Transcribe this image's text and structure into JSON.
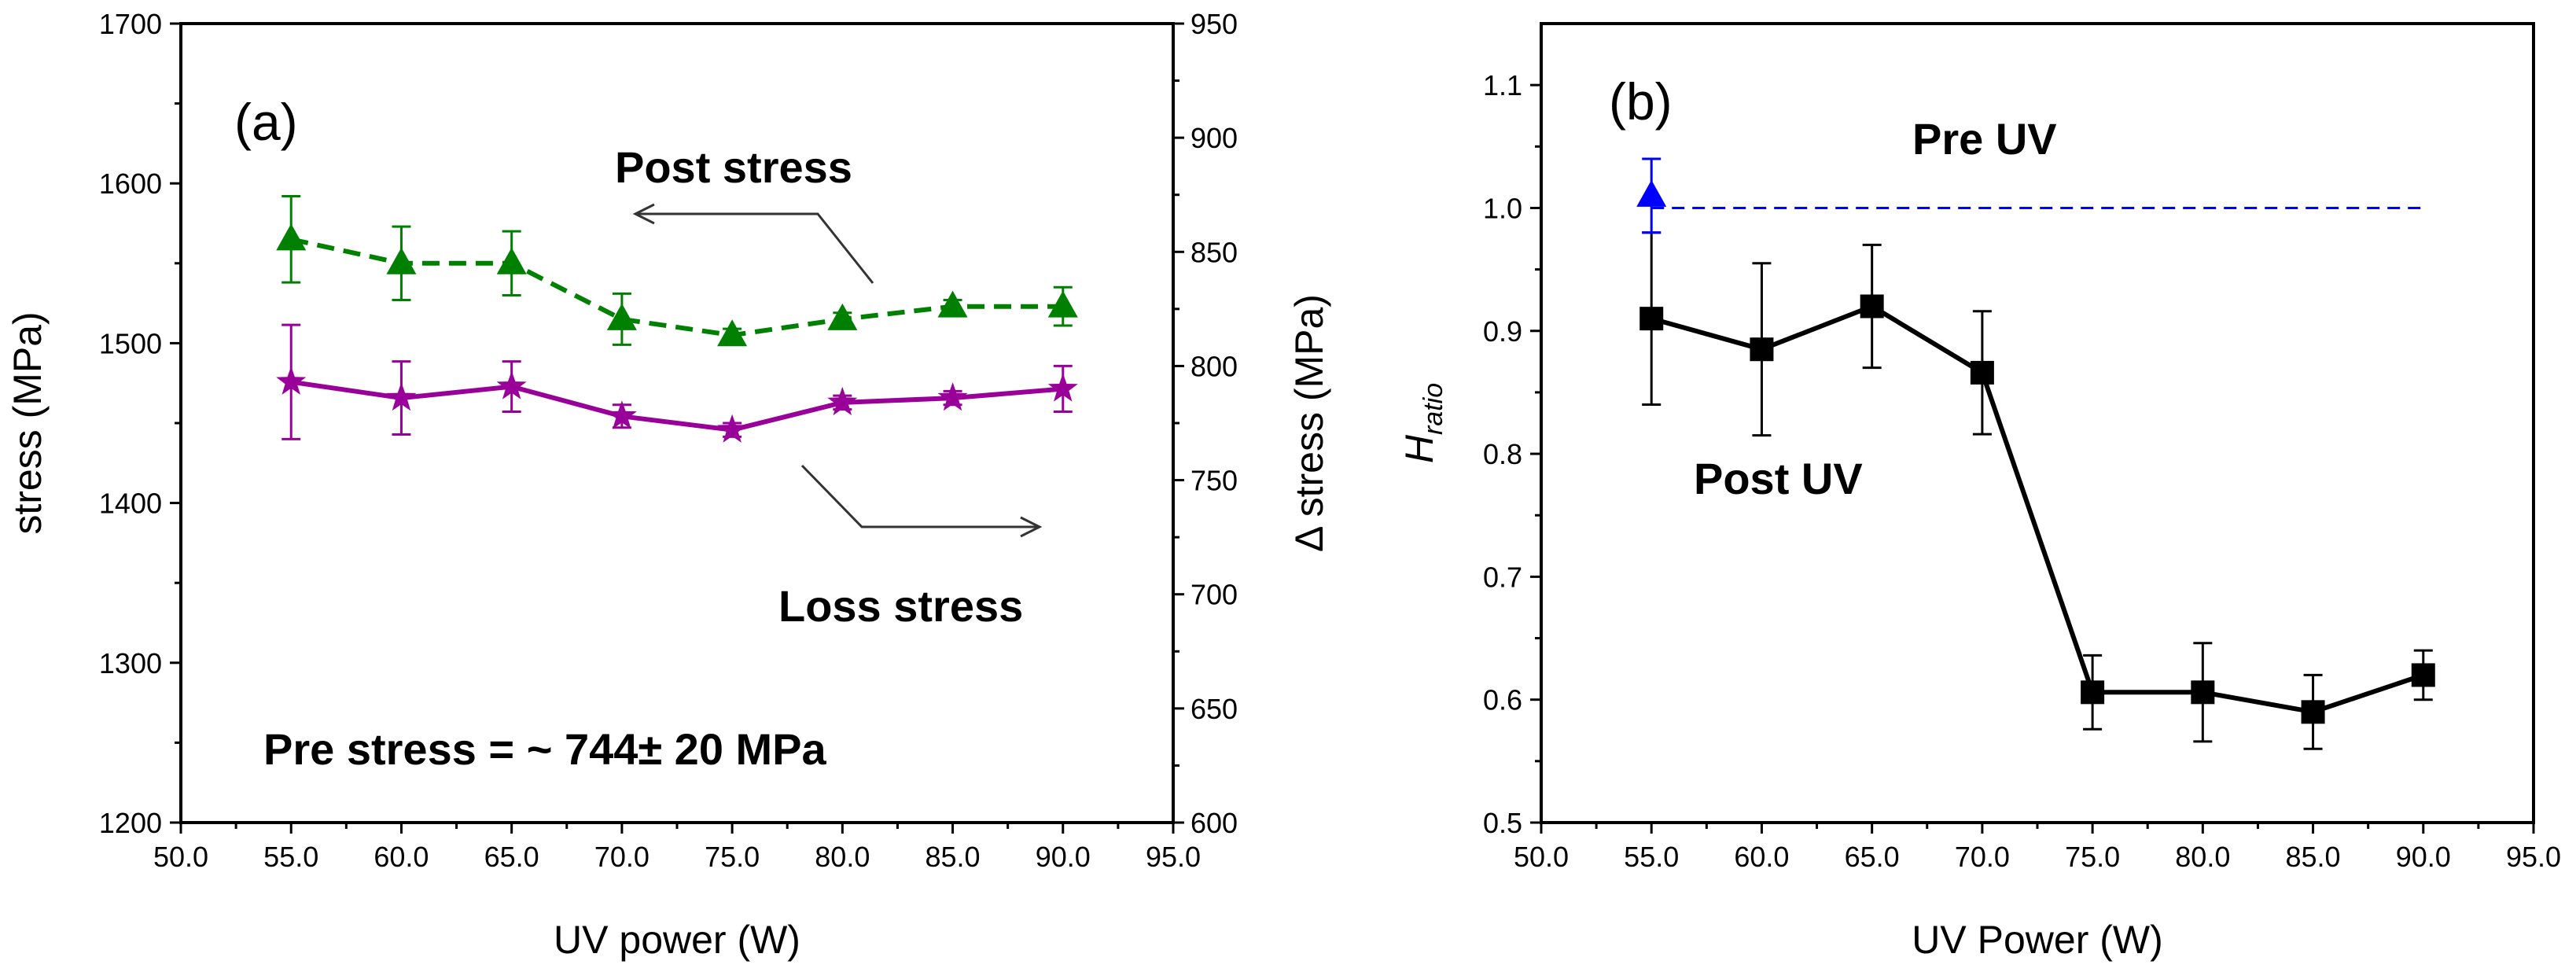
{
  "chart_data": [
    {
      "type": "line",
      "panel_label": "(a)",
      "xlabel": "UV power (W)",
      "ylabel": "stress (MPa)",
      "y2label": "Δ stress (MPa)",
      "xlim": [
        50,
        95
      ],
      "ylim": [
        1200,
        1700
      ],
      "y2lim": [
        600,
        950
      ],
      "x_ticks": [
        "50.0",
        "55.0",
        "60.0",
        "65.0",
        "70.0",
        "75.0",
        "80.0",
        "85.0",
        "90.0",
        "95.0"
      ],
      "y_ticks": [
        "1200",
        "1300",
        "1400",
        "1500",
        "1600",
        "1700"
      ],
      "y2_ticks": [
        "600",
        "650",
        "700",
        "750",
        "800",
        "850",
        "900",
        "950"
      ],
      "x": [
        55,
        60,
        65,
        70,
        75,
        80,
        85,
        90
      ],
      "series": [
        {
          "name": "Post stress",
          "axis": "left",
          "color": "#008000",
          "marker": "triangle",
          "line": "dashed",
          "values": [
            1565,
            1550,
            1550,
            1515,
            1505,
            1515,
            1523,
            1523
          ],
          "errors": [
            27,
            23,
            20,
            16,
            4,
            4,
            4,
            12
          ]
        },
        {
          "name": "Loss stress",
          "axis": "right",
          "color": "#990099",
          "marker": "star",
          "line": "solid",
          "values": [
            793,
            786,
            791,
            778,
            772,
            784,
            786,
            790
          ],
          "errors": [
            25,
            16,
            11,
            5,
            3,
            3,
            3,
            10
          ]
        }
      ],
      "annotations": {
        "post_stress": "Post stress",
        "loss_stress": "Loss stress",
        "pre_stress": "Pre stress = ~ 744± 20 MPa"
      }
    },
    {
      "type": "line",
      "panel_label": "(b)",
      "xlabel": "UV Power (W)",
      "ylabel_main": "H",
      "ylabel_sub": "ratio",
      "xlim": [
        50,
        95
      ],
      "ylim": [
        0.5,
        1.15
      ],
      "x_ticks": [
        "50.0",
        "55.0",
        "60.0",
        "65.0",
        "70.0",
        "75.0",
        "80.0",
        "85.0",
        "90.0",
        "95.0"
      ],
      "y_ticks": [
        "0.5",
        "0.6",
        "0.7",
        "0.8",
        "0.9",
        "1.0",
        "1.1"
      ],
      "x": [
        55,
        60,
        65,
        70,
        75,
        80,
        85,
        90
      ],
      "series": [
        {
          "name": "Post UV",
          "color": "#000000",
          "marker": "square",
          "line": "solid",
          "values": [
            0.91,
            0.885,
            0.92,
            0.866,
            0.606,
            0.606,
            0.59,
            0.62
          ],
          "errors": [
            0.07,
            0.07,
            0.05,
            0.05,
            0.03,
            0.04,
            0.03,
            0.02
          ]
        },
        {
          "name": "Pre UV",
          "color": "#0000ff",
          "marker": "triangle",
          "x": [
            55
          ],
          "values": [
            1.01
          ],
          "errors": [
            0.03
          ],
          "reference_line": {
            "y": 1.0,
            "x_start": 55,
            "x_end": 90,
            "style": "dashed"
          }
        }
      ],
      "annotations": {
        "pre_uv": "Pre UV",
        "post_uv": "Post UV"
      }
    }
  ]
}
